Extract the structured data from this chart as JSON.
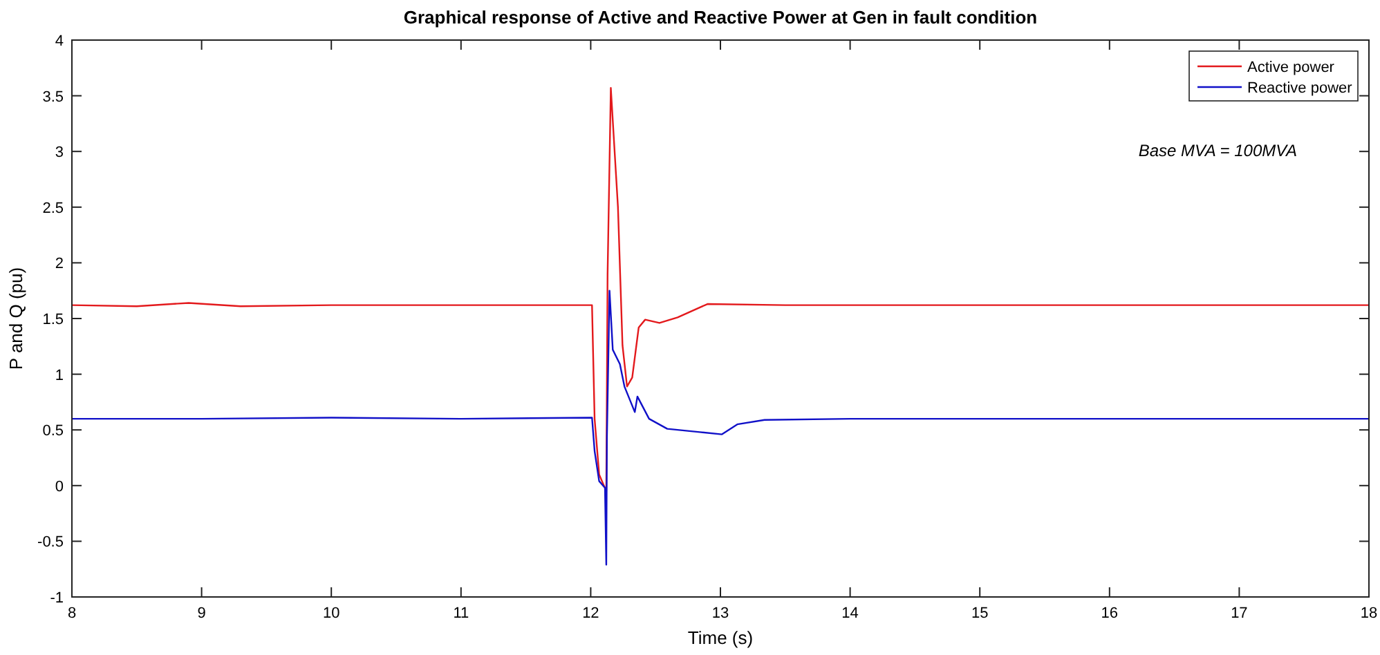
{
  "chart_data": {
    "type": "line",
    "title": "Graphical response of Active and Reactive Power at Gen in fault condition",
    "xlabel": "Time (s)",
    "ylabel": "P and Q (pu)",
    "annotations": [
      "Base MVA = 100MVA"
    ],
    "xlim": [
      8,
      18
    ],
    "ylim": [
      -1,
      4
    ],
    "xticks": [
      8,
      9,
      10,
      11,
      12,
      13,
      14,
      15,
      16,
      17,
      18
    ],
    "yticks": [
      -1,
      -0.5,
      0,
      0.5,
      1,
      1.5,
      2,
      2.5,
      3,
      3.5,
      4
    ],
    "grid": false,
    "legend": "top right",
    "marker": "none",
    "line_style": "solid",
    "series": [
      {
        "name": "Active power",
        "color": "#e3191c",
        "x": [
          8,
          8.5,
          8.9,
          9.3,
          10,
          11,
          11.5,
          12.01,
          12.03,
          12.065,
          12.12,
          12.13,
          12.155,
          12.21,
          12.245,
          12.28,
          12.32,
          12.37,
          12.42,
          12.53,
          12.67,
          12.9,
          13.5,
          14,
          15,
          16,
          17,
          18
        ],
        "values": [
          1.62,
          1.61,
          1.64,
          1.61,
          1.62,
          1.62,
          1.62,
          1.62,
          0.6,
          0.1,
          -0.05,
          1.9,
          3.57,
          2.5,
          1.26,
          0.89,
          0.97,
          1.42,
          1.49,
          1.46,
          1.51,
          1.63,
          1.62,
          1.62,
          1.62,
          1.62,
          1.62,
          1.62
        ]
      },
      {
        "name": "Reactive power",
        "color": "#1010c8",
        "x": [
          8,
          9,
          10,
          11,
          12.01,
          12.03,
          12.065,
          12.11,
          12.12,
          12.125,
          12.145,
          12.17,
          12.225,
          12.26,
          12.34,
          12.36,
          12.45,
          12.59,
          12.84,
          13.01,
          13.13,
          13.34,
          14,
          15,
          16,
          17,
          18
        ],
        "values": [
          0.6,
          0.6,
          0.61,
          0.6,
          0.61,
          0.31,
          0.04,
          -0.02,
          -0.71,
          0.43,
          1.75,
          1.22,
          1.09,
          0.89,
          0.66,
          0.8,
          0.6,
          0.51,
          0.48,
          0.46,
          0.55,
          0.59,
          0.6,
          0.6,
          0.6,
          0.6,
          0.6
        ]
      }
    ]
  }
}
